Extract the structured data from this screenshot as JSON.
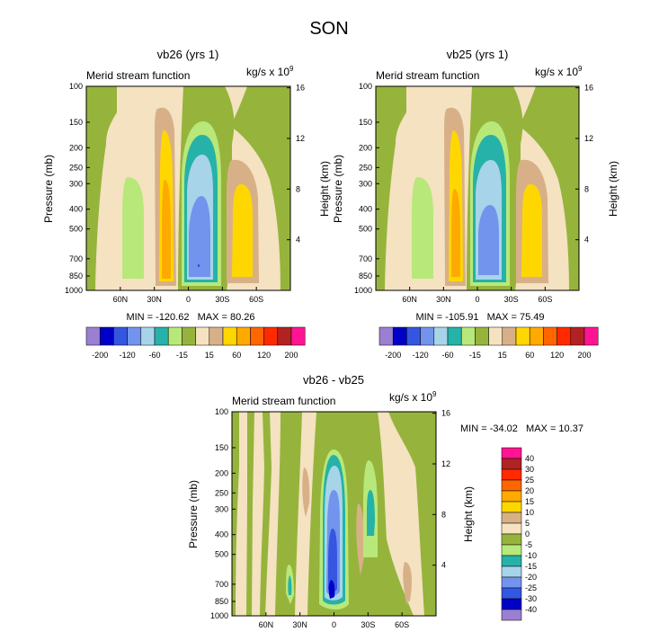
{
  "title": "SON",
  "units_text": "kg/s x 10",
  "units_exp": "9",
  "colors": {
    "bg": "#f4e2c1",
    "c_210": "#9b7fd3",
    "c_200": "#0000c8",
    "c_160": "#3556e0",
    "c_120": "#7294ec",
    "c_90": "#a8d4ea",
    "c_60": "#26b2a8",
    "c_30": "#b8e87a",
    "c_15": "#96b43c",
    "p_15": "#d8b088",
    "p_30": "#ffd700",
    "p_60": "#ffaa00",
    "p_90": "#ff6600",
    "p_120": "#ff2a00",
    "p_160": "#b22222",
    "p_200": "#ffb4c8",
    "p_210": "#ff1493"
  },
  "chart_data": [
    {
      "type": "heatmap",
      "title": "vb26 (yrs 1)",
      "subtitle": "Merid stream function",
      "xlabel": "",
      "ylabel": "Pressure (mb)",
      "y2label": "Height (km)",
      "x_ticks": [
        "60N",
        "30N",
        "0",
        "30S",
        "60S"
      ],
      "y_ticks": [
        "100",
        "150",
        "200",
        "250",
        "300",
        "400",
        "500",
        "700",
        "850",
        "1000"
      ],
      "y2_ticks": [
        "4",
        "8",
        "12",
        "16"
      ],
      "stats": "MIN = -120.62   MAX = 80.26",
      "min": -120.62,
      "max": 80.26
    },
    {
      "type": "heatmap",
      "title": "vb25 (yrs 1)",
      "subtitle": "Merid stream function",
      "xlabel": "",
      "ylabel": "Pressure (mb)",
      "y2label": "Height (km)",
      "x_ticks": [
        "60N",
        "30N",
        "0",
        "30S",
        "60S"
      ],
      "y_ticks": [
        "100",
        "150",
        "200",
        "250",
        "300",
        "400",
        "500",
        "700",
        "850",
        "1000"
      ],
      "y2_ticks": [
        "4",
        "8",
        "12",
        "16"
      ],
      "stats": "MIN = -105.91   MAX = 75.49",
      "min": -105.91,
      "max": 75.49
    },
    {
      "type": "heatmap",
      "title": "vb26 - vb25",
      "subtitle": "Merid stream function",
      "xlabel": "",
      "ylabel": "Pressure (mb)",
      "y2label": "Height (km)",
      "x_ticks": [
        "60N",
        "30N",
        "0",
        "30S",
        "60S"
      ],
      "y_ticks": [
        "100",
        "150",
        "200",
        "250",
        "300",
        "400",
        "500",
        "700",
        "850",
        "1000"
      ],
      "y2_ticks": [
        "4",
        "8",
        "12",
        "16"
      ],
      "stats": "MIN = -34.02   MAX = 10.37",
      "min": -34.02,
      "max": 10.37
    }
  ],
  "top_colorbar": {
    "labels": [
      "-200",
      "-120",
      "-60",
      "-15",
      "15",
      "60",
      "120",
      "200"
    ]
  },
  "diff_colorbar": {
    "labels": [
      "40",
      "30",
      "25",
      "20",
      "15",
      "10",
      "5",
      "0",
      "-5",
      "-10",
      "-15",
      "-20",
      "-25",
      "-30",
      "-40"
    ]
  }
}
